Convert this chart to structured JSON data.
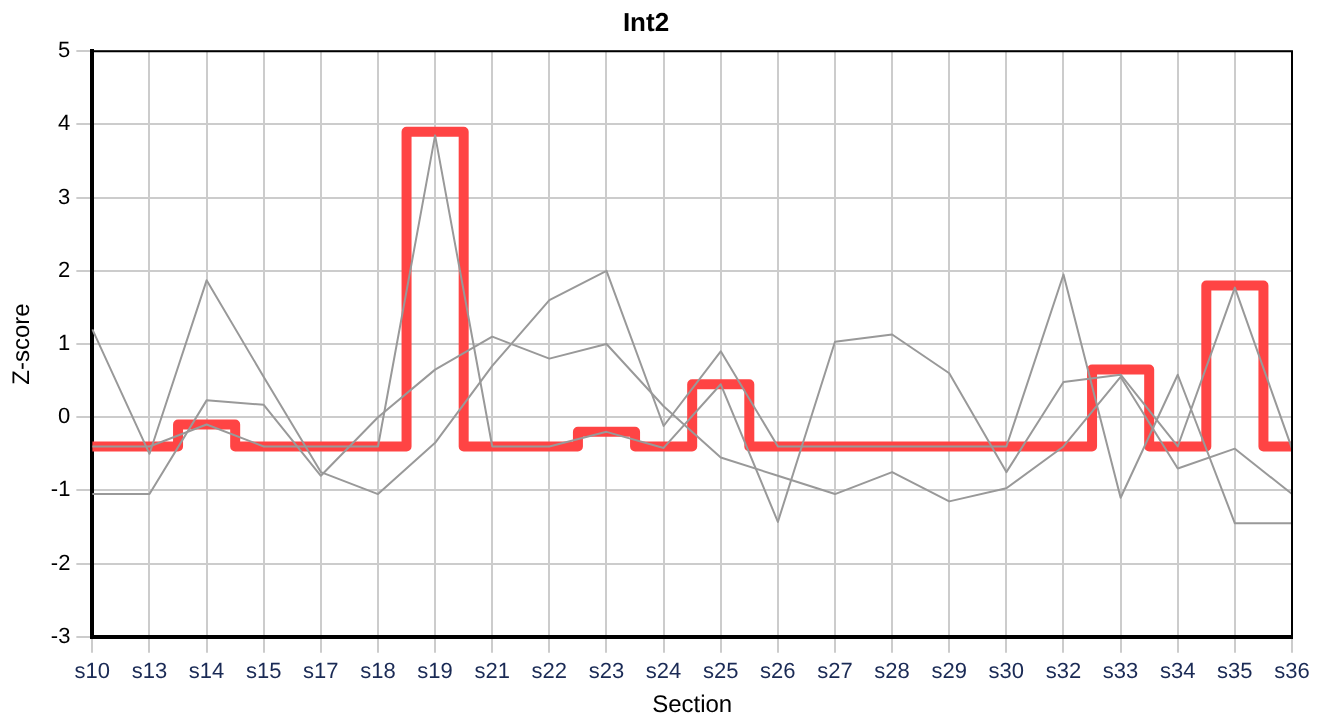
{
  "chart_data": {
    "type": "line",
    "title": "Int2",
    "xlabel": "Section",
    "ylabel": "Z-score",
    "categories": [
      "s10",
      "s13",
      "s14",
      "s15",
      "s17",
      "s18",
      "s19",
      "s21",
      "s22",
      "s23",
      "s24",
      "s25",
      "s26",
      "s27",
      "s28",
      "s29",
      "s30",
      "s32",
      "s33",
      "s34",
      "s35",
      "s36"
    ],
    "series": [
      {
        "type": "line",
        "color": "#999999",
        "values": [
          1.2,
          -0.5,
          1.87,
          0.55,
          -0.75,
          -1.05,
          -0.35,
          0.7,
          1.6,
          2.0,
          -0.12,
          0.9,
          -0.4,
          -0.4,
          -0.4,
          -0.4,
          -0.4,
          1.95,
          -1.1,
          0.58,
          -1.45,
          -1.45
        ]
      },
      {
        "type": "line",
        "color": "#999999",
        "values": [
          -1.05,
          -1.05,
          0.23,
          0.17,
          -0.8,
          0.0,
          0.65,
          1.1,
          0.8,
          1.0,
          0.15,
          -0.55,
          -0.8,
          -1.05,
          -0.75,
          -1.15,
          -0.97,
          -0.4,
          0.55,
          -0.7,
          -0.43,
          -1.05
        ]
      },
      {
        "type": "line",
        "color": "#999999",
        "values": [
          -0.4,
          -0.4,
          -0.1,
          -0.4,
          -0.4,
          -0.4,
          3.85,
          -0.4,
          -0.4,
          -0.2,
          -0.42,
          0.45,
          -1.43,
          1.03,
          1.13,
          0.6,
          -0.75,
          0.48,
          0.58,
          -0.4,
          1.77,
          -0.43
        ]
      },
      {
        "type": "step",
        "color": "#ff4444",
        "values": [
          -0.4,
          -0.4,
          -0.1,
          -0.4,
          -0.4,
          -0.4,
          3.9,
          -0.4,
          -0.4,
          -0.2,
          -0.4,
          0.45,
          -0.4,
          -0.4,
          -0.4,
          -0.4,
          -0.4,
          -0.4,
          0.65,
          -0.4,
          1.8,
          -0.4
        ]
      }
    ],
    "ylim": [
      -3,
      5
    ],
    "yticks": [
      -3,
      -2,
      -1,
      0,
      1,
      2,
      3,
      4,
      5
    ],
    "grid": true,
    "marker": "none"
  }
}
